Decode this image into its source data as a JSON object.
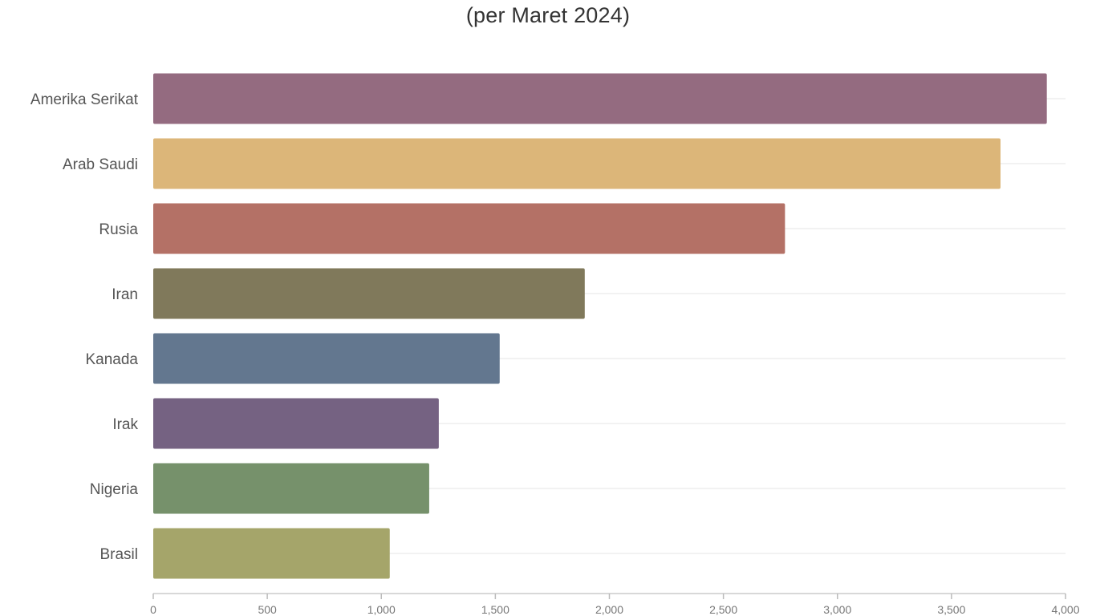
{
  "chart_data": {
    "type": "bar",
    "orientation": "horizontal",
    "title": "",
    "subtitle": "(per Maret 2024)",
    "xlabel": "",
    "ylabel": "",
    "categories": [
      "Amerika Serikat",
      "Arab Saudi",
      "Rusia",
      "Iran",
      "Kanada",
      "Irak",
      "Nigeria",
      "Brasil"
    ],
    "values": [
      3918,
      3715,
      2770,
      1892,
      1519,
      1252,
      1210,
      1037
    ],
    "colors": [
      "#946b80",
      "#dcb679",
      "#b47166",
      "#80795b",
      "#63778f",
      "#756282",
      "#76916b",
      "#a5a56a"
    ],
    "xlim": [
      0,
      4000
    ],
    "xticks": [
      0,
      500,
      1000,
      1500,
      2000,
      2500,
      3000,
      3500,
      4000
    ],
    "grid": true,
    "legend": "none"
  }
}
